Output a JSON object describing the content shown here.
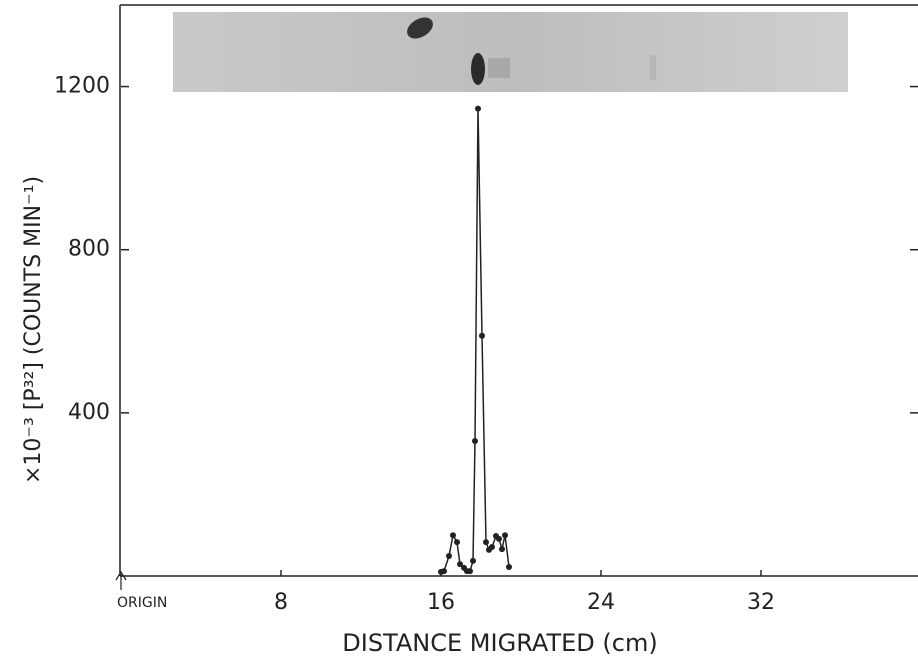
{
  "chart_data": {
    "type": "line",
    "x_label": "DISTANCE MIGRATED (cm)",
    "y_label": "×10⁻³ [P³²] (COUNTS MIN⁻¹)",
    "x": [
      16.0,
      16.15,
      16.4,
      16.6,
      16.8,
      16.95,
      17.15,
      17.3,
      17.45,
      17.6,
      17.7,
      17.85,
      18.05,
      18.25,
      18.4,
      18.55,
      18.75,
      18.9,
      19.05,
      19.2,
      19.4
    ],
    "values": [
      10,
      12,
      49,
      100,
      83,
      29,
      20,
      12,
      12,
      37,
      331,
      1146,
      589,
      83,
      64,
      71,
      98,
      91,
      66,
      100,
      22
    ],
    "color": "#222222",
    "xlim": [
      0,
      39.85
    ],
    "ylim": [
      0,
      1400
    ],
    "xticks": [
      {
        "value": 0,
        "label": "ORIGIN"
      },
      8,
      16,
      24,
      32
    ],
    "yticks": [
      400,
      800,
      1200
    ]
  }
}
